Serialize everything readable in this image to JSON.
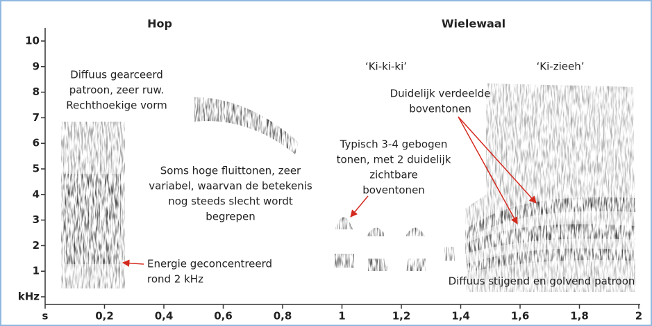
{
  "chart_data": {
    "type": "spectrogram",
    "titles": [
      "Hop",
      "Wielewaal"
    ],
    "call_labels": [
      "‘Ki-ki-ki’",
      "‘Ki-zieeh’"
    ],
    "annotations": [
      {
        "lines": [
          "Diffuus gearceerd",
          "patroon, zeer ruw.",
          "Rechthoekige vorm"
        ]
      },
      {
        "lines": [
          "Soms hoge fluittonen, zeer",
          "variabel, waarvan de betekenis",
          "nog steeds slecht wordt",
          "begrepen"
        ]
      },
      {
        "lines": [
          "Energie geconcentreerd",
          "rond 2 kHz"
        ]
      },
      {
        "lines": [
          "Typisch 3-4 gebogen",
          "tonen, met 2 duidelijk",
          "zichtbare",
          "boventonen"
        ]
      },
      {
        "lines": [
          "Duidelijk verdeelde",
          "boventonen"
        ]
      },
      {
        "lines": [
          "Diffuus stijgend en golvend patroon"
        ]
      }
    ],
    "xlim": [
      0,
      2
    ],
    "xticks": [
      {
        "value": 0,
        "label": "s"
      },
      {
        "value": 0.2,
        "label": "0,2"
      },
      {
        "value": 0.4,
        "label": "0,4"
      },
      {
        "value": 0.6,
        "label": "0,6"
      },
      {
        "value": 0.8,
        "label": "0,8"
      },
      1,
      {
        "value": 1.2,
        "label": "1,2"
      },
      {
        "value": 1.4,
        "label": "1,4"
      },
      {
        "value": 1.6,
        "label": "1,6"
      },
      {
        "value": 1.8,
        "label": "1,8"
      },
      2
    ],
    "ylim": [
      0,
      10.5
    ],
    "yticks": [
      {
        "value": 0,
        "label": "kHz"
      },
      1,
      2,
      3,
      4,
      5,
      6,
      7,
      8,
      9,
      10
    ]
  }
}
